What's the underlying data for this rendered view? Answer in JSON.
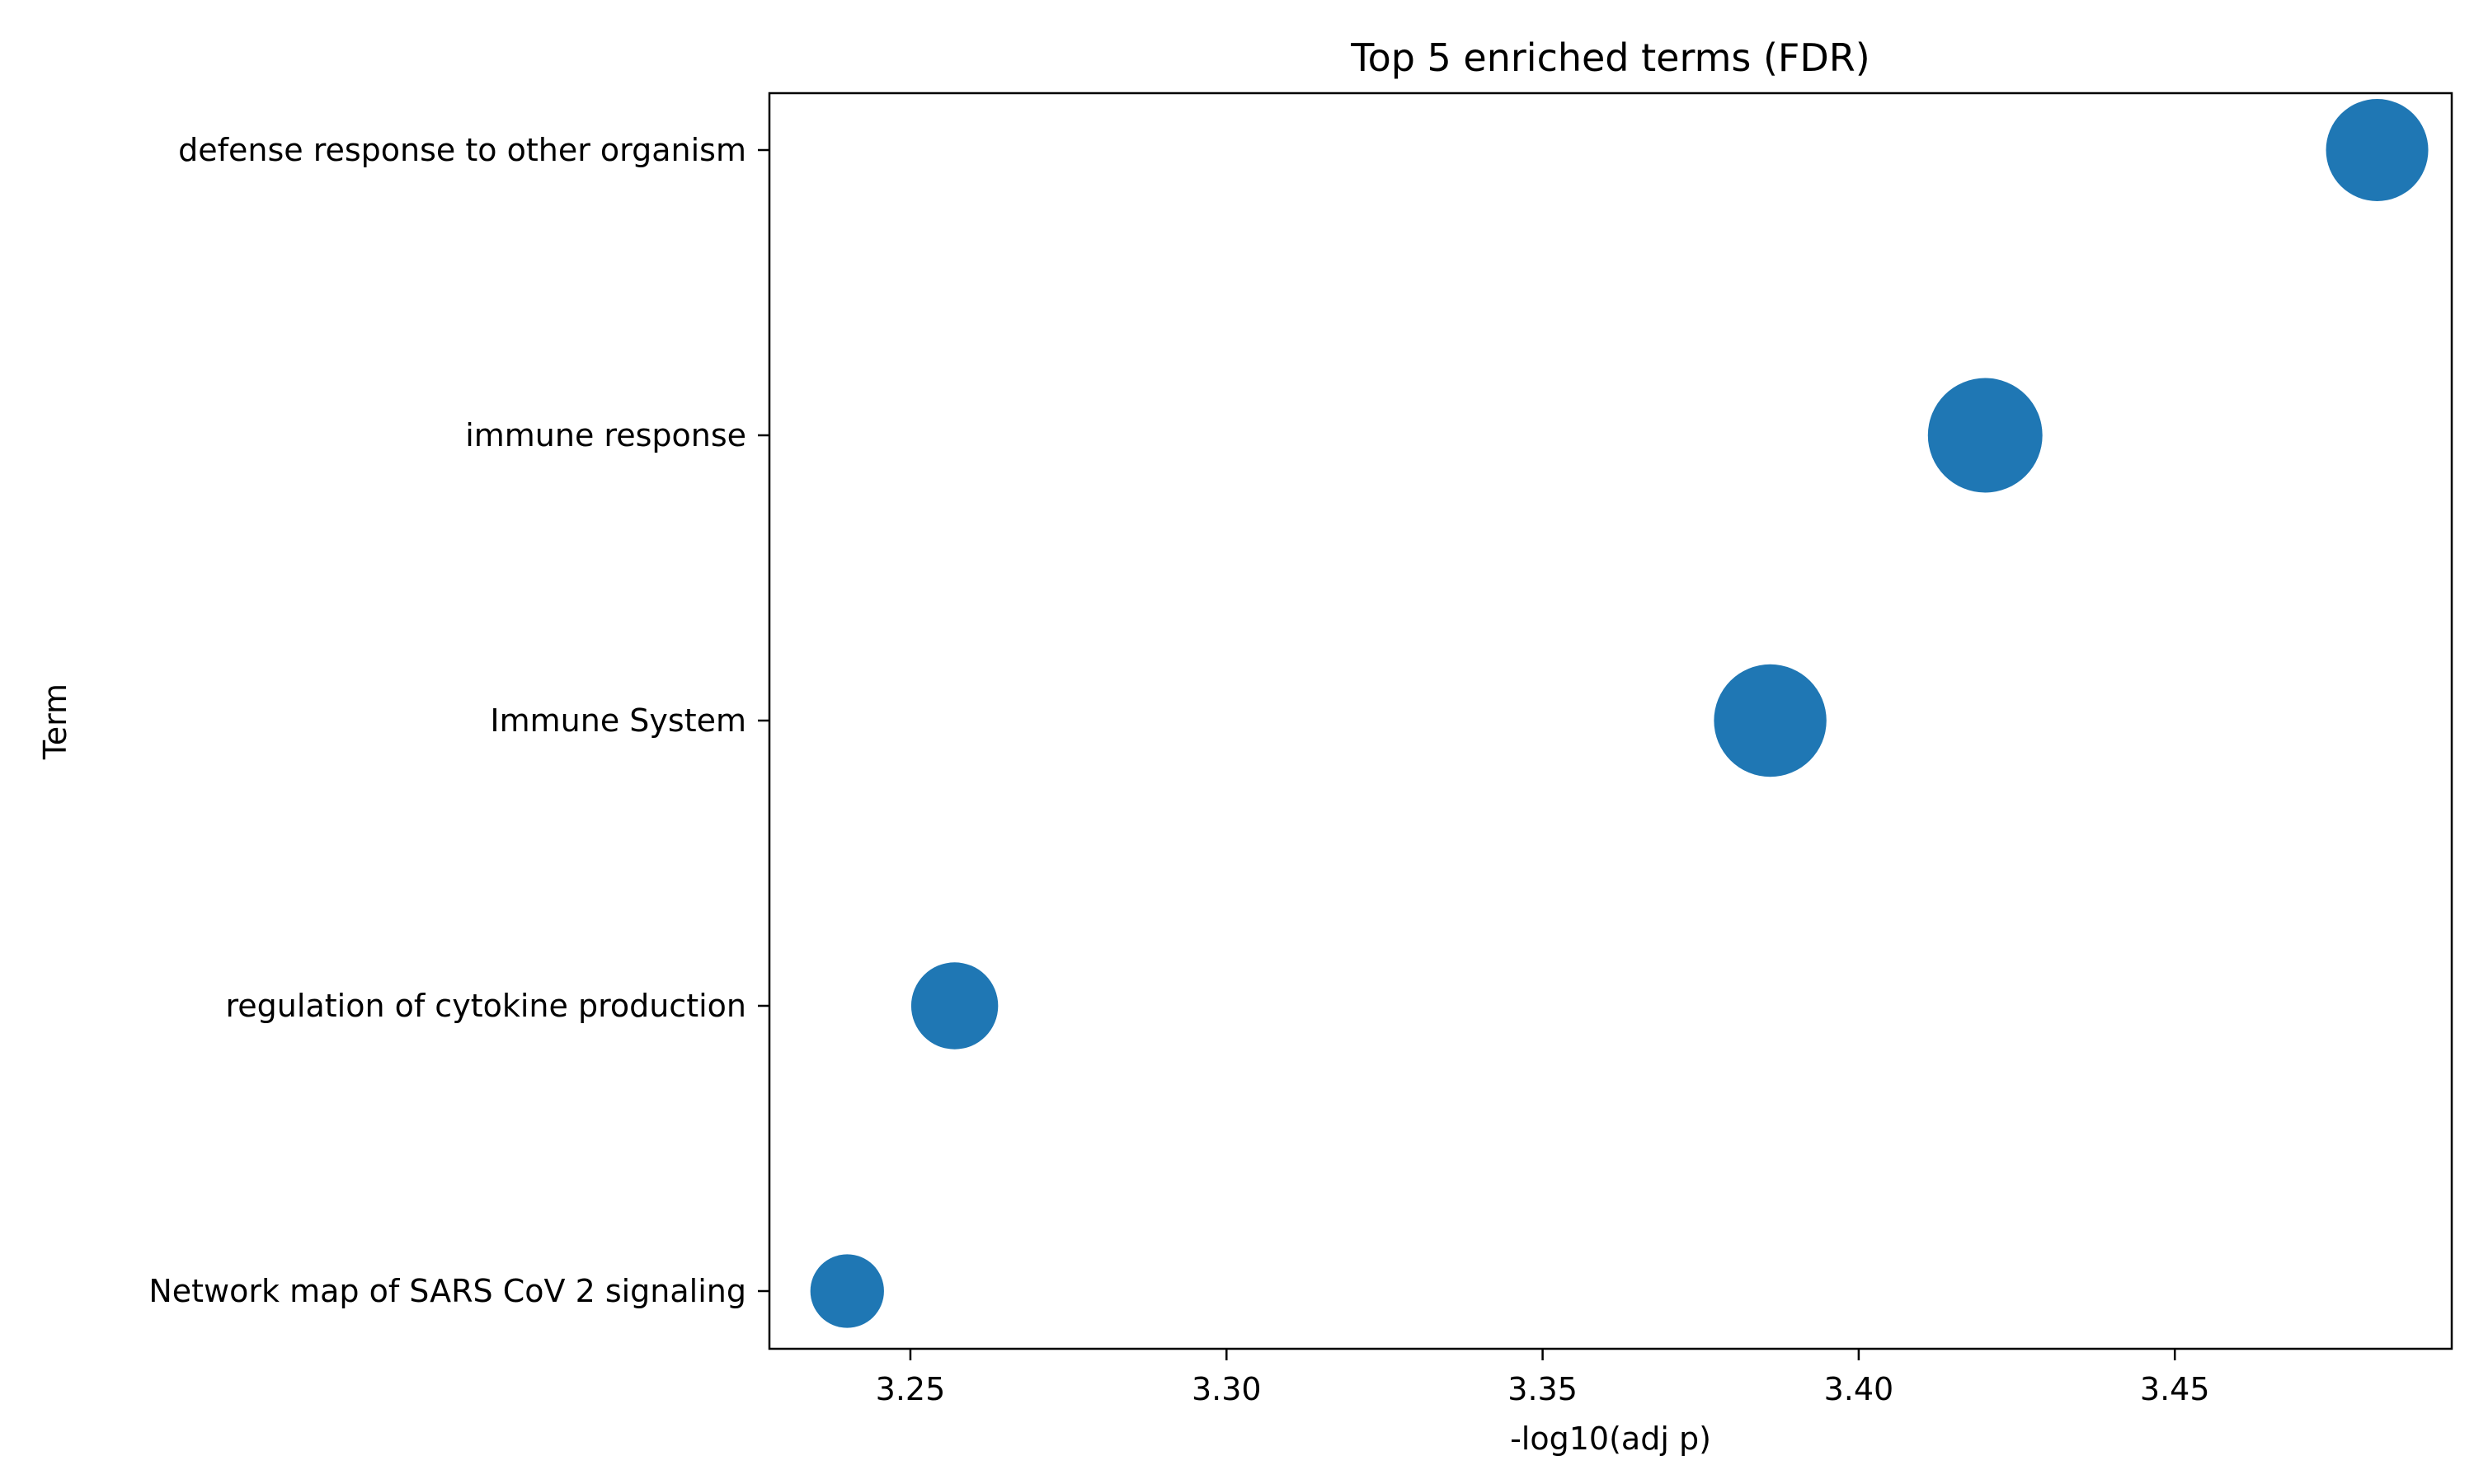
{
  "chart_data": {
    "type": "scatter",
    "title": "Top 5 enriched terms (FDR)",
    "xlabel": "-log10(adj p)",
    "ylabel": "Term",
    "xlim": [
      3.2277,
      3.4938
    ],
    "xticks": [
      "3.25",
      "3.30",
      "3.35",
      "3.40",
      "3.45"
    ],
    "xtick_values": [
      3.25,
      3.3,
      3.35,
      3.4,
      3.45
    ],
    "categories": [
      "defense response to other organism",
      "immune response",
      "Immune System",
      "regulation of cytokine production",
      "Network map of SARS CoV 2 signaling"
    ],
    "values": [
      3.482,
      3.42,
      3.386,
      3.257,
      3.24
    ],
    "marker_size_relative": [
      1.0,
      1.12,
      1.1,
      0.85,
      0.72
    ],
    "grid": false,
    "legend": "none",
    "color": "#1f77b4"
  }
}
